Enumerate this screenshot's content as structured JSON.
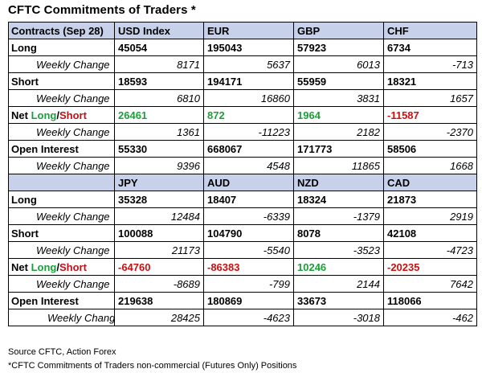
{
  "title": "CFTC Commitments of Traders *",
  "table1": {
    "header": {
      "label": "Contracts (Sep 28)",
      "cols": [
        "USD Index",
        "EUR",
        "GBP",
        "CHF"
      ]
    },
    "long": {
      "label": "Long",
      "values": [
        "45054",
        "195043",
        "57923",
        "6734"
      ]
    },
    "long_change": {
      "label": "Weekly Change",
      "values": [
        "8171",
        "5637",
        "6013",
        "-713"
      ]
    },
    "short": {
      "label": "Short",
      "values": [
        "18593",
        "194171",
        "55959",
        "18321"
      ]
    },
    "short_change": {
      "label": "Weekly Change",
      "values": [
        "6810",
        "16860",
        "3831",
        "1657"
      ]
    },
    "net": {
      "label_prefix": "Net ",
      "label_long": "Long",
      "label_sep": "/",
      "label_short": "Short",
      "values": [
        "26461",
        "872",
        "1964",
        "-11587"
      ],
      "signs": [
        "pos",
        "pos",
        "pos",
        "neg"
      ]
    },
    "net_change": {
      "label": "Weekly Change",
      "values": [
        "1361",
        "-11223",
        "2182",
        "-2370"
      ]
    },
    "oi": {
      "label": "Open Interest",
      "values": [
        "55330",
        "668067",
        "171773",
        "58506"
      ]
    },
    "oi_change": {
      "label": "Weekly Change",
      "values": [
        "9396",
        "4548",
        "11865",
        "1668"
      ]
    }
  },
  "table2": {
    "header": {
      "label": "",
      "cols": [
        "JPY",
        "AUD",
        "NZD",
        "CAD"
      ]
    },
    "long": {
      "label": "Long",
      "values": [
        "35328",
        "18407",
        "18324",
        "21873"
      ]
    },
    "long_change": {
      "label": "Weekly Change",
      "values": [
        "12484",
        "-6339",
        "-1379",
        "2919"
      ]
    },
    "short": {
      "label": "Short",
      "values": [
        "100088",
        "104790",
        "8078",
        "42108"
      ]
    },
    "short_change": {
      "label": "Weekly Change",
      "values": [
        "21173",
        "-5540",
        "-3523",
        "-4723"
      ]
    },
    "net": {
      "label_prefix": "Net ",
      "label_long": "Long",
      "label_sep": "/",
      "label_short": "Short",
      "values": [
        "-64760",
        "-86383",
        "10246",
        "-20235"
      ],
      "signs": [
        "neg",
        "neg",
        "pos",
        "neg"
      ]
    },
    "net_change": {
      "label": "Weekly Change",
      "values": [
        "-8689",
        "-799",
        "2144",
        "7642"
      ]
    },
    "oi": {
      "label": "Open Interest",
      "values": [
        "219638",
        "180869",
        "33673",
        "118066"
      ]
    },
    "oi_change": {
      "label": "Weekly Change",
      "values": [
        "28425",
        "-4623",
        "-3018",
        "-462"
      ]
    }
  },
  "footnote_source": "Source CFTC, Action Forex",
  "footnote_note": "*CFTC Commitments of Traders non-commercial (Futures Only) Positions",
  "colors": {
    "header_bg": "#c7d1e9",
    "positive": "#1e9e3a",
    "negative": "#cc1010"
  }
}
